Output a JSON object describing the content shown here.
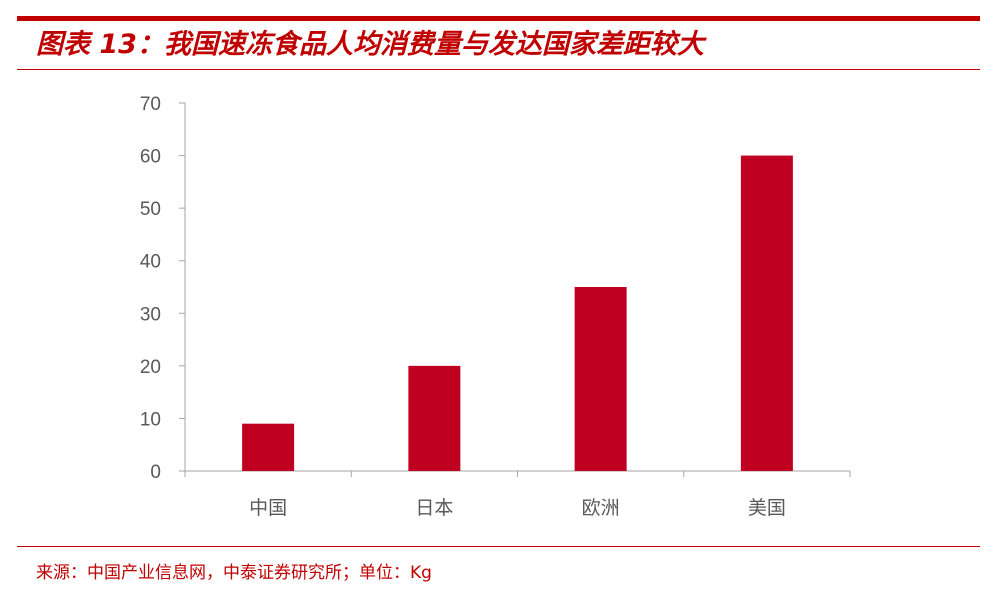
{
  "figure": {
    "title": "图表 13：我国速冻食品人均消费量与发达国家差距较大",
    "source_label": "来源：",
    "source_text": "中国产业信息网，中泰证券研究所；单位：Kg"
  },
  "colors": {
    "accent": "#c00000",
    "bar": "#c00020",
    "axis": "#a6a6a6",
    "tick_text": "#595959"
  },
  "chart_data": {
    "type": "bar",
    "categories": [
      "中国",
      "日本",
      "欧洲",
      "美国"
    ],
    "values": [
      9,
      20,
      35,
      60
    ],
    "title": "",
    "xlabel": "",
    "ylabel": "",
    "ylim": [
      0,
      70
    ],
    "yticks": [
      0,
      10,
      20,
      30,
      40,
      50,
      60,
      70
    ],
    "grid": false,
    "legend": "none"
  }
}
